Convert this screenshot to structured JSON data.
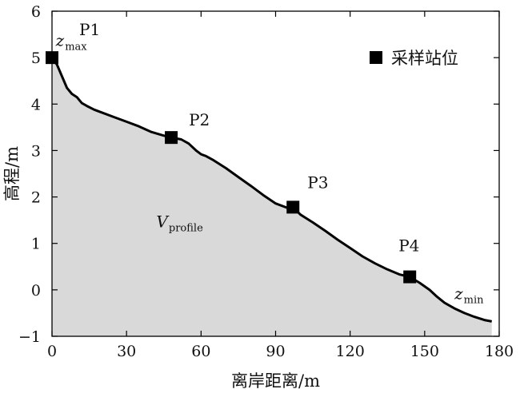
{
  "chart_data": {
    "type": "area",
    "title": "",
    "xlabel": "离岸距离/m",
    "ylabel": "高程/m",
    "xlim": [
      0,
      180
    ],
    "ylim": [
      -1,
      6
    ],
    "xticks": [
      0,
      30,
      60,
      90,
      120,
      150,
      180
    ],
    "yticks": [
      -1,
      0,
      1,
      2,
      3,
      4,
      5,
      6
    ],
    "xtick_labels": [
      "0",
      "30",
      "60",
      "90",
      "120",
      "150",
      "180"
    ],
    "ytick_labels": [
      "−1",
      "0",
      "1",
      "2",
      "3",
      "4",
      "5",
      "6"
    ],
    "grid": false,
    "fill_color": "#d9d9d9",
    "line_color": "#000000",
    "profile": {
      "x": [
        0,
        2,
        4,
        6,
        8,
        10,
        12,
        14,
        17,
        20,
        25,
        30,
        35,
        40,
        45,
        48,
        52,
        55,
        58,
        60,
        62,
        65,
        70,
        75,
        80,
        85,
        90,
        95,
        97,
        100,
        105,
        110,
        115,
        120,
        125,
        130,
        135,
        140,
        144,
        148,
        152,
        155,
        158,
        162,
        166,
        170,
        174,
        177
      ],
      "y": [
        5.0,
        4.85,
        4.6,
        4.35,
        4.22,
        4.15,
        4.02,
        3.96,
        3.88,
        3.82,
        3.72,
        3.62,
        3.52,
        3.4,
        3.32,
        3.28,
        3.24,
        3.15,
        3.0,
        2.92,
        2.88,
        2.79,
        2.62,
        2.43,
        2.24,
        2.04,
        1.86,
        1.76,
        1.78,
        1.62,
        1.45,
        1.27,
        1.08,
        0.9,
        0.72,
        0.57,
        0.44,
        0.33,
        0.28,
        0.15,
        0.0,
        -0.15,
        -0.28,
        -0.4,
        -0.5,
        -0.58,
        -0.65,
        -0.68
      ]
    },
    "stations": [
      {
        "label": "P1",
        "x": 0,
        "y": 5.0,
        "marker": true
      },
      {
        "label": "P2",
        "x": 48,
        "y": 3.28,
        "marker": true
      },
      {
        "label": "P3",
        "x": 97,
        "y": 1.78,
        "marker": true
      },
      {
        "label": "P4",
        "x": 144,
        "y": 0.28,
        "marker": true
      }
    ],
    "annotations": [
      {
        "main": "z",
        "sub": "max",
        "x": 1.5,
        "y": 5.25
      },
      {
        "main": "z",
        "sub": "min",
        "x": 162,
        "y": -0.2
      },
      {
        "main": "V",
        "sub": "profile",
        "x": 42,
        "y": 1.35
      }
    ],
    "legend": {
      "label": "采样站位",
      "position": "top-right",
      "marker": "square"
    }
  }
}
